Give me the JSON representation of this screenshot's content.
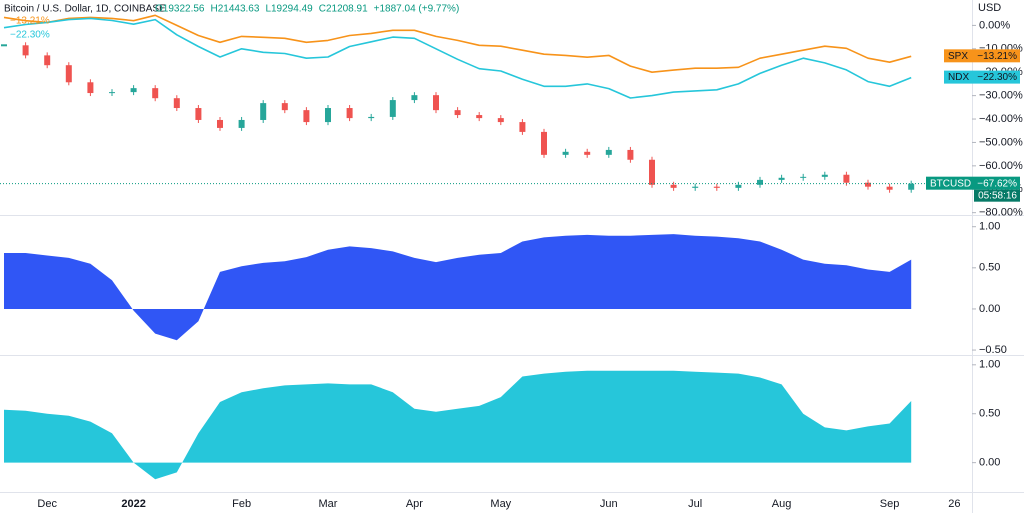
{
  "chart_data": [
    {
      "type": "line",
      "title": "Bitcoin / U.S. Dollar, 1D, COINBASE",
      "ohlc": [
        "O19322.56",
        "H21443.63",
        "L19294.49",
        "C21208.91",
        "+1887.04 (+9.77%)"
      ],
      "y_unit": "USD",
      "countdown": "05:58:16",
      "ylim": [
        -81,
        10
      ],
      "yticks": [
        {
          "value": 0,
          "label": "0.00%"
        },
        {
          "value": -10,
          "label": "−10.00%"
        },
        {
          "value": -20,
          "label": "−20.00%"
        },
        {
          "value": -30,
          "label": "−30.00%"
        },
        {
          "value": -40,
          "label": "−40.00%"
        },
        {
          "value": -50,
          "label": "−50.00%"
        },
        {
          "value": -60,
          "label": "−60.00%"
        },
        {
          "value": -70,
          "label": "−70.00%"
        },
        {
          "value": -80,
          "label": "−80.00%"
        }
      ],
      "series": [
        {
          "name": "SPX",
          "color": "#f7931a",
          "values": [
            3.4,
            2.0,
            1.3,
            3.0,
            3.4,
            3.0,
            2.0,
            4.3,
            0,
            -4.3,
            -7.2,
            -4.7,
            -5.1,
            -5.5,
            -7.2,
            -6.4,
            -4.3,
            -3.4,
            -2.1,
            -2.1,
            -4.7,
            -6.4,
            -8.5,
            -8.9,
            -10.6,
            -12.3,
            -12.8,
            -13.6,
            -12.8,
            -17.4,
            -20.0,
            -19.1,
            -18.3,
            -18.3,
            -17.9,
            -14.0,
            -12.3,
            -10.6,
            -8.9,
            -9.8,
            -14.0,
            -15.7,
            -13.21,
            null,
            null
          ],
          "value_labels": [
            null,
            null,
            null,
            null,
            null,
            null,
            null,
            null,
            null,
            null,
            null,
            null,
            null,
            null,
            null,
            null,
            null,
            null,
            null,
            null,
            null,
            null,
            null,
            null,
            null,
            null,
            null,
            null,
            null,
            null,
            null,
            null,
            null,
            null,
            null,
            null,
            null,
            null,
            null,
            null,
            null,
            null,
            "−13.21%",
            null,
            null
          ]
        },
        {
          "name": "NDX",
          "color": "#26c6da",
          "values": [
            -1.0,
            0.4,
            1.3,
            2.5,
            3.0,
            2.1,
            0.5,
            2.5,
            -4.0,
            -9.0,
            -13.5,
            -10,
            -11.5,
            -12,
            -14,
            -13.5,
            -9,
            -7,
            -5,
            -5.5,
            -10,
            -14.5,
            -18.5,
            -19.5,
            -23,
            -26,
            -26,
            -25,
            -27,
            -31,
            -30,
            -28.5,
            -28,
            -27.5,
            -25,
            -20.5,
            -17,
            -14,
            -16,
            -19,
            -24,
            -26,
            -22.3,
            null,
            null
          ],
          "value_labels": [
            null,
            null,
            null,
            null,
            null,
            null,
            null,
            null,
            null,
            null,
            null,
            null,
            null,
            null,
            null,
            null,
            null,
            null,
            null,
            null,
            null,
            null,
            null,
            null,
            null,
            null,
            null,
            null,
            null,
            null,
            null,
            null,
            null,
            null,
            null,
            null,
            null,
            null,
            null,
            null,
            null,
            null,
            "−22.30%",
            null,
            null
          ]
        },
        {
          "name": "BTCUSD",
          "color": "#089981",
          "up_color": "#26a69a",
          "down_color": "#ef5350",
          "values": [
            -8.5,
            -12.8,
            -17,
            -24.3,
            -28.9,
            -28.5,
            -26.8,
            -31.1,
            -35.3,
            -40.4,
            -43.8,
            -40.4,
            -33.2,
            -36.2,
            -41.3,
            -35.3,
            -39.6,
            -39.1,
            -31.9,
            -29.8,
            -36.2,
            -38.3,
            -39.6,
            -41.3,
            -45.5,
            -55.3,
            -54,
            -55.3,
            -53.2,
            -57.4,
            -68.1,
            -69.4,
            -68.9,
            -69.4,
            -68.1,
            -66,
            -65.1,
            -64.7,
            -63.8,
            -67.2,
            -68.9,
            -70.2,
            -67.62,
            null,
            null
          ],
          "value_labels": [
            null,
            null,
            null,
            null,
            null,
            null,
            null,
            null,
            null,
            null,
            null,
            null,
            null,
            null,
            null,
            null,
            null,
            null,
            null,
            null,
            null,
            null,
            null,
            null,
            null,
            null,
            null,
            null,
            null,
            null,
            null,
            null,
            null,
            null,
            null,
            null,
            null,
            null,
            null,
            null,
            null,
            null,
            "−67.62%",
            null,
            null
          ]
        }
      ]
    },
    {
      "type": "area",
      "color": "#3056f5",
      "ylim": [
        -0.56,
        1.13
      ],
      "yticks": [
        {
          "value": 1,
          "label": "1.00"
        },
        {
          "value": 0.5,
          "label": "0.50"
        },
        {
          "value": 0,
          "label": "0.00"
        },
        {
          "value": -0.5,
          "label": "−0.50"
        }
      ],
      "values": [
        0.68,
        0.68,
        0.65,
        0.62,
        0.55,
        0.35,
        -0.02,
        -0.3,
        -0.38,
        -0.15,
        0.45,
        0.52,
        0.56,
        0.58,
        0.63,
        0.72,
        0.76,
        0.74,
        0.7,
        0.62,
        0.57,
        0.62,
        0.66,
        0.68,
        0.82,
        0.87,
        0.89,
        0.9,
        0.89,
        0.89,
        0.9,
        0.91,
        0.89,
        0.88,
        0.86,
        0.82,
        0.72,
        0.6,
        0.55,
        0.53,
        0.48,
        0.45,
        0.6,
        null,
        null
      ]
    },
    {
      "type": "area",
      "color": "#26c6da",
      "ylim": [
        -0.3,
        1.09
      ],
      "yticks": [
        {
          "value": 1,
          "label": "1.00"
        },
        {
          "value": 0.5,
          "label": "0.50"
        },
        {
          "value": 0,
          "label": "0.00"
        }
      ],
      "values": [
        0.54,
        0.53,
        0.5,
        0.48,
        0.42,
        0.3,
        0,
        -0.17,
        -0.1,
        0.3,
        0.62,
        0.72,
        0.76,
        0.79,
        0.8,
        0.81,
        0.8,
        0.8,
        0.72,
        0.55,
        0.52,
        0.55,
        0.58,
        0.67,
        0.88,
        0.91,
        0.93,
        0.94,
        0.94,
        0.94,
        0.94,
        0.94,
        0.93,
        0.92,
        0.91,
        0.87,
        0.8,
        0.5,
        0.36,
        0.33,
        0.37,
        0.4,
        0.63,
        null,
        null
      ],
      "categories": [
        null,
        null,
        "Dec",
        null,
        null,
        null,
        "2022",
        null,
        null,
        null,
        null,
        "Feb",
        null,
        null,
        null,
        "Mar",
        null,
        null,
        null,
        "Apr",
        null,
        null,
        null,
        "May",
        null,
        null,
        null,
        null,
        "Jun",
        null,
        null,
        null,
        "Jul",
        null,
        null,
        null,
        "Aug",
        null,
        null,
        null,
        null,
        "Sep",
        null,
        null,
        "26"
      ]
    }
  ]
}
